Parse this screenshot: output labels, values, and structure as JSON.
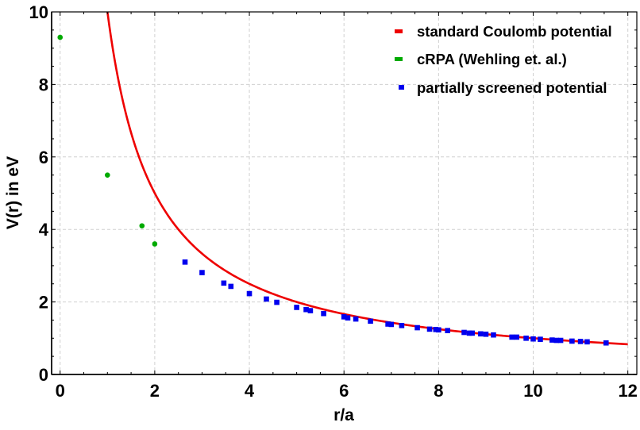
{
  "chart_data": {
    "type": "scatter",
    "title": "",
    "xlabel": "r/a",
    "ylabel": "V(r) in eV",
    "xlim": [
      -0.18,
      12.19
    ],
    "ylim": [
      0,
      10
    ],
    "x_ticks": [
      0,
      2,
      4,
      6,
      8,
      10,
      12
    ],
    "y_ticks": [
      0,
      2,
      4,
      6,
      8,
      10
    ],
    "x_minor_step": 0.5,
    "y_minor_step": 0.5,
    "grid": true,
    "legend_position": "upper right",
    "series": [
      {
        "name": "standard Coulomb potential",
        "kind": "line",
        "color": "#ee0000",
        "formula": "V = 10 / r",
        "x_range": [
          1.0,
          12.0
        ]
      },
      {
        "name": "cRPA (Wehling et. al.)",
        "kind": "scatter",
        "marker": "circle",
        "color": "#00aa00",
        "x": [
          0,
          1,
          1.73,
          2
        ],
        "y": [
          9.3,
          5.5,
          4.1,
          3.6
        ]
      },
      {
        "name": "partially screened potential",
        "kind": "scatter",
        "marker": "square",
        "color": "#0000ee",
        "x": [
          2.64,
          3.0,
          3.46,
          3.61,
          4.0,
          4.36,
          4.58,
          5.0,
          5.2,
          5.29,
          5.57,
          6.0,
          6.08,
          6.25,
          6.56,
          6.93,
          7.0,
          7.22,
          7.55,
          7.81,
          7.94,
          8.0,
          8.19,
          8.54,
          8.65,
          8.71,
          8.89,
          9.0,
          9.16,
          9.55,
          9.65,
          9.85,
          10.0,
          10.15,
          10.4,
          10.49,
          10.58,
          10.82,
          11.0,
          11.14,
          11.54
        ],
        "y": [
          3.1,
          2.81,
          2.52,
          2.43,
          2.23,
          2.08,
          1.99,
          1.85,
          1.79,
          1.76,
          1.68,
          1.59,
          1.56,
          1.53,
          1.47,
          1.39,
          1.38,
          1.35,
          1.29,
          1.25,
          1.24,
          1.23,
          1.21,
          1.16,
          1.14,
          1.14,
          1.12,
          1.11,
          1.09,
          1.03,
          1.03,
          1.0,
          0.98,
          0.97,
          0.95,
          0.94,
          0.94,
          0.92,
          0.91,
          0.9,
          0.87
        ]
      }
    ]
  }
}
